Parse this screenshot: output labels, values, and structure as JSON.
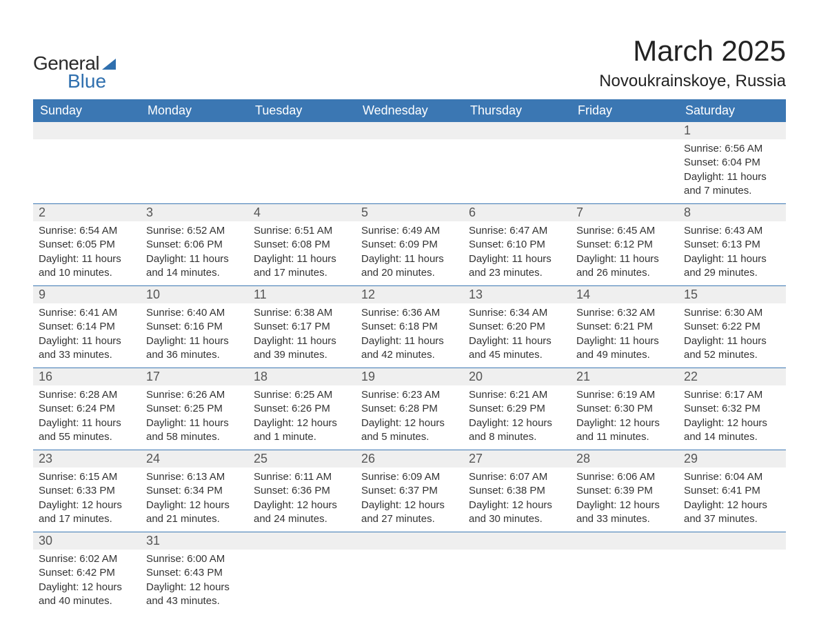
{
  "brand": {
    "word1": "General",
    "word2": "Blue"
  },
  "title": "March 2025",
  "location": "Novoukrainskoye, Russia",
  "day_headers": [
    "Sunday",
    "Monday",
    "Tuesday",
    "Wednesday",
    "Thursday",
    "Friday",
    "Saturday"
  ],
  "colors": {
    "header_bg": "#3b77b3",
    "header_fg": "#ffffff",
    "daynum_bg": "#efefef",
    "row_divider": "#3b77b3",
    "brand_accent": "#2f6fae",
    "text": "#333333"
  },
  "weeks": [
    {
      "nums": [
        "",
        "",
        "",
        "",
        "",
        "",
        "1"
      ],
      "cells": [
        null,
        null,
        null,
        null,
        null,
        null,
        {
          "sunrise": "Sunrise: 6:56 AM",
          "sunset": "Sunset: 6:04 PM",
          "daylight": "Daylight: 11 hours and 7 minutes."
        }
      ]
    },
    {
      "nums": [
        "2",
        "3",
        "4",
        "5",
        "6",
        "7",
        "8"
      ],
      "cells": [
        {
          "sunrise": "Sunrise: 6:54 AM",
          "sunset": "Sunset: 6:05 PM",
          "daylight": "Daylight: 11 hours and 10 minutes."
        },
        {
          "sunrise": "Sunrise: 6:52 AM",
          "sunset": "Sunset: 6:06 PM",
          "daylight": "Daylight: 11 hours and 14 minutes."
        },
        {
          "sunrise": "Sunrise: 6:51 AM",
          "sunset": "Sunset: 6:08 PM",
          "daylight": "Daylight: 11 hours and 17 minutes."
        },
        {
          "sunrise": "Sunrise: 6:49 AM",
          "sunset": "Sunset: 6:09 PM",
          "daylight": "Daylight: 11 hours and 20 minutes."
        },
        {
          "sunrise": "Sunrise: 6:47 AM",
          "sunset": "Sunset: 6:10 PM",
          "daylight": "Daylight: 11 hours and 23 minutes."
        },
        {
          "sunrise": "Sunrise: 6:45 AM",
          "sunset": "Sunset: 6:12 PM",
          "daylight": "Daylight: 11 hours and 26 minutes."
        },
        {
          "sunrise": "Sunrise: 6:43 AM",
          "sunset": "Sunset: 6:13 PM",
          "daylight": "Daylight: 11 hours and 29 minutes."
        }
      ]
    },
    {
      "nums": [
        "9",
        "10",
        "11",
        "12",
        "13",
        "14",
        "15"
      ],
      "cells": [
        {
          "sunrise": "Sunrise: 6:41 AM",
          "sunset": "Sunset: 6:14 PM",
          "daylight": "Daylight: 11 hours and 33 minutes."
        },
        {
          "sunrise": "Sunrise: 6:40 AM",
          "sunset": "Sunset: 6:16 PM",
          "daylight": "Daylight: 11 hours and 36 minutes."
        },
        {
          "sunrise": "Sunrise: 6:38 AM",
          "sunset": "Sunset: 6:17 PM",
          "daylight": "Daylight: 11 hours and 39 minutes."
        },
        {
          "sunrise": "Sunrise: 6:36 AM",
          "sunset": "Sunset: 6:18 PM",
          "daylight": "Daylight: 11 hours and 42 minutes."
        },
        {
          "sunrise": "Sunrise: 6:34 AM",
          "sunset": "Sunset: 6:20 PM",
          "daylight": "Daylight: 11 hours and 45 minutes."
        },
        {
          "sunrise": "Sunrise: 6:32 AM",
          "sunset": "Sunset: 6:21 PM",
          "daylight": "Daylight: 11 hours and 49 minutes."
        },
        {
          "sunrise": "Sunrise: 6:30 AM",
          "sunset": "Sunset: 6:22 PM",
          "daylight": "Daylight: 11 hours and 52 minutes."
        }
      ]
    },
    {
      "nums": [
        "16",
        "17",
        "18",
        "19",
        "20",
        "21",
        "22"
      ],
      "cells": [
        {
          "sunrise": "Sunrise: 6:28 AM",
          "sunset": "Sunset: 6:24 PM",
          "daylight": "Daylight: 11 hours and 55 minutes."
        },
        {
          "sunrise": "Sunrise: 6:26 AM",
          "sunset": "Sunset: 6:25 PM",
          "daylight": "Daylight: 11 hours and 58 minutes."
        },
        {
          "sunrise": "Sunrise: 6:25 AM",
          "sunset": "Sunset: 6:26 PM",
          "daylight": "Daylight: 12 hours and 1 minute."
        },
        {
          "sunrise": "Sunrise: 6:23 AM",
          "sunset": "Sunset: 6:28 PM",
          "daylight": "Daylight: 12 hours and 5 minutes."
        },
        {
          "sunrise": "Sunrise: 6:21 AM",
          "sunset": "Sunset: 6:29 PM",
          "daylight": "Daylight: 12 hours and 8 minutes."
        },
        {
          "sunrise": "Sunrise: 6:19 AM",
          "sunset": "Sunset: 6:30 PM",
          "daylight": "Daylight: 12 hours and 11 minutes."
        },
        {
          "sunrise": "Sunrise: 6:17 AM",
          "sunset": "Sunset: 6:32 PM",
          "daylight": "Daylight: 12 hours and 14 minutes."
        }
      ]
    },
    {
      "nums": [
        "23",
        "24",
        "25",
        "26",
        "27",
        "28",
        "29"
      ],
      "cells": [
        {
          "sunrise": "Sunrise: 6:15 AM",
          "sunset": "Sunset: 6:33 PM",
          "daylight": "Daylight: 12 hours and 17 minutes."
        },
        {
          "sunrise": "Sunrise: 6:13 AM",
          "sunset": "Sunset: 6:34 PM",
          "daylight": "Daylight: 12 hours and 21 minutes."
        },
        {
          "sunrise": "Sunrise: 6:11 AM",
          "sunset": "Sunset: 6:36 PM",
          "daylight": "Daylight: 12 hours and 24 minutes."
        },
        {
          "sunrise": "Sunrise: 6:09 AM",
          "sunset": "Sunset: 6:37 PM",
          "daylight": "Daylight: 12 hours and 27 minutes."
        },
        {
          "sunrise": "Sunrise: 6:07 AM",
          "sunset": "Sunset: 6:38 PM",
          "daylight": "Daylight: 12 hours and 30 minutes."
        },
        {
          "sunrise": "Sunrise: 6:06 AM",
          "sunset": "Sunset: 6:39 PM",
          "daylight": "Daylight: 12 hours and 33 minutes."
        },
        {
          "sunrise": "Sunrise: 6:04 AM",
          "sunset": "Sunset: 6:41 PM",
          "daylight": "Daylight: 12 hours and 37 minutes."
        }
      ]
    },
    {
      "nums": [
        "30",
        "31",
        "",
        "",
        "",
        "",
        ""
      ],
      "cells": [
        {
          "sunrise": "Sunrise: 6:02 AM",
          "sunset": "Sunset: 6:42 PM",
          "daylight": "Daylight: 12 hours and 40 minutes."
        },
        {
          "sunrise": "Sunrise: 6:00 AM",
          "sunset": "Sunset: 6:43 PM",
          "daylight": "Daylight: 12 hours and 43 minutes."
        },
        null,
        null,
        null,
        null,
        null
      ]
    }
  ]
}
